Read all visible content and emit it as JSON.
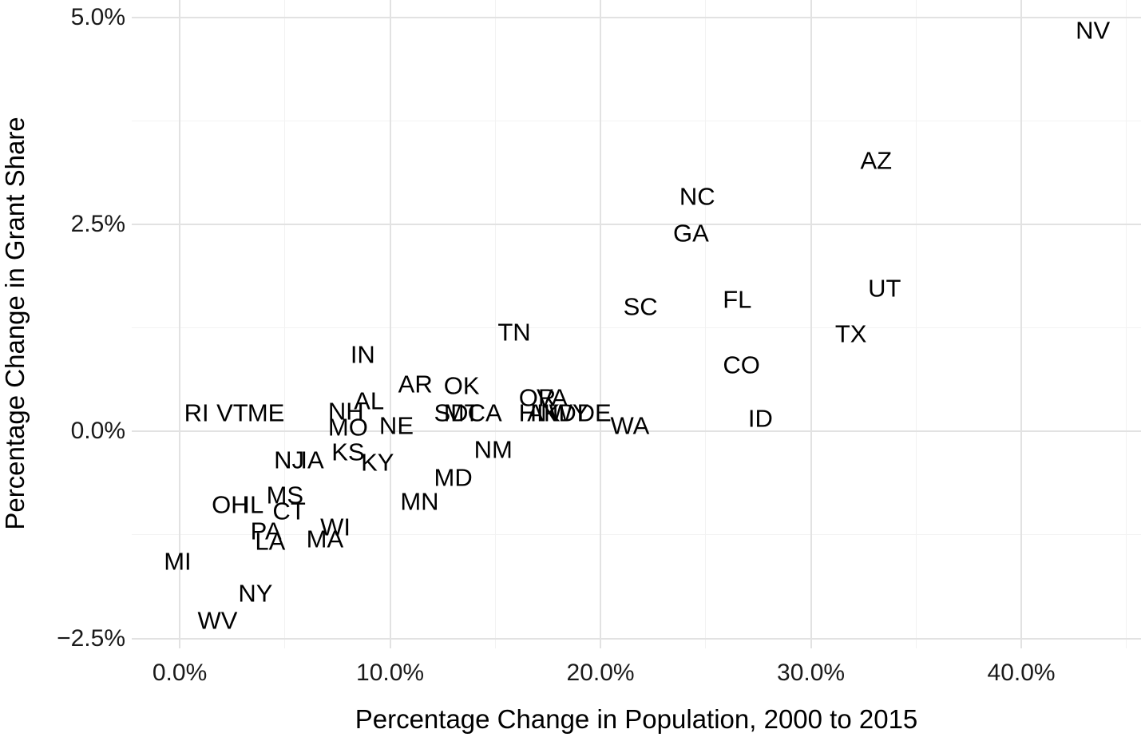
{
  "chart_data": {
    "type": "scatter",
    "point_style": "text-labels",
    "title": "",
    "xlabel": "Percentage Change in Population, 2000 to 2015",
    "ylabel": "Percentage Change in Grant Share",
    "xlim": [
      -2.28,
      45.69
    ],
    "ylim": [
      -2.62,
      5.21
    ],
    "grid": true,
    "legend": "none",
    "x_major_ticks": [
      {
        "value": 0,
        "label": "0.0%"
      },
      {
        "value": 10,
        "label": "10.0%"
      },
      {
        "value": 20,
        "label": "20.0%"
      },
      {
        "value": 30,
        "label": "30.0%"
      },
      {
        "value": 40,
        "label": "40.0%"
      }
    ],
    "x_minor_ticks": [
      5,
      15,
      25,
      35,
      45
    ],
    "y_major_ticks": [
      {
        "value": 5,
        "label": "5.0%"
      },
      {
        "value": 2.5,
        "label": "2.5%"
      },
      {
        "value": 0,
        "label": "0.0%"
      },
      {
        "value": -2.5,
        "label": "−2.5%"
      }
    ],
    "y_minor_ticks": [
      3.75,
      1.25,
      -1.25
    ],
    "points": [
      {
        "label": "AK",
        "x": 17.3,
        "y": 0.22
      },
      {
        "label": "AL",
        "x": 9.0,
        "y": 0.37
      },
      {
        "label": "AR",
        "x": 11.2,
        "y": 0.57
      },
      {
        "label": "AZ",
        "x": 33.1,
        "y": 3.27
      },
      {
        "label": "CA",
        "x": 14.5,
        "y": 0.22
      },
      {
        "label": "CO",
        "x": 26.7,
        "y": 0.8
      },
      {
        "label": "CT",
        "x": 5.2,
        "y": -0.96
      },
      {
        "label": "DE",
        "x": 19.7,
        "y": 0.22
      },
      {
        "label": "FL",
        "x": 26.5,
        "y": 1.59
      },
      {
        "label": "GA",
        "x": 24.3,
        "y": 2.39
      },
      {
        "label": "HI",
        "x": 16.7,
        "y": 0.22
      },
      {
        "label": "IA",
        "x": 6.3,
        "y": -0.34
      },
      {
        "label": "ID",
        "x": 27.6,
        "y": 0.16
      },
      {
        "label": "IL",
        "x": 3.5,
        "y": -0.88
      },
      {
        "label": "IN",
        "x": 8.7,
        "y": 0.93
      },
      {
        "label": "KS",
        "x": 8.0,
        "y": -0.25
      },
      {
        "label": "KY",
        "x": 9.4,
        "y": -0.37
      },
      {
        "label": "LA",
        "x": 4.3,
        "y": -1.33
      },
      {
        "label": "MA",
        "x": 6.9,
        "y": -1.3
      },
      {
        "label": "MD",
        "x": 13.0,
        "y": -0.56
      },
      {
        "label": "ME",
        "x": 4.1,
        "y": 0.22
      },
      {
        "label": "MI",
        "x": -0.1,
        "y": -1.57
      },
      {
        "label": "MN",
        "x": 11.4,
        "y": -0.85
      },
      {
        "label": "MO",
        "x": 8.0,
        "y": 0.05
      },
      {
        "label": "MS",
        "x": 5.0,
        "y": -0.77
      },
      {
        "label": "MT",
        "x": 13.4,
        "y": 0.22
      },
      {
        "label": "NC",
        "x": 24.6,
        "y": 2.84
      },
      {
        "label": "ND",
        "x": 18.0,
        "y": 0.22
      },
      {
        "label": "NE",
        "x": 10.3,
        "y": 0.07
      },
      {
        "label": "NH",
        "x": 7.9,
        "y": 0.24
      },
      {
        "label": "NJ",
        "x": 5.2,
        "y": -0.34
      },
      {
        "label": "NM",
        "x": 14.9,
        "y": -0.22
      },
      {
        "label": "NV",
        "x": 43.4,
        "y": 4.84
      },
      {
        "label": "NY",
        "x": 3.6,
        "y": -1.95
      },
      {
        "label": "OH",
        "x": 2.4,
        "y": -0.88
      },
      {
        "label": "OK",
        "x": 13.4,
        "y": 0.55
      },
      {
        "label": "OR",
        "x": 17.0,
        "y": 0.41
      },
      {
        "label": "PA",
        "x": 4.1,
        "y": -1.2
      },
      {
        "label": "RI",
        "x": 0.8,
        "y": 0.22
      },
      {
        "label": "SC",
        "x": 21.9,
        "y": 1.51
      },
      {
        "label": "SD",
        "x": 12.9,
        "y": 0.22
      },
      {
        "label": "TN",
        "x": 15.9,
        "y": 1.2
      },
      {
        "label": "TX",
        "x": 31.9,
        "y": 1.18
      },
      {
        "label": "UT",
        "x": 33.5,
        "y": 1.73
      },
      {
        "label": "VA",
        "x": 17.7,
        "y": 0.41
      },
      {
        "label": "VT",
        "x": 2.5,
        "y": 0.22
      },
      {
        "label": "WA",
        "x": 21.4,
        "y": 0.07
      },
      {
        "label": "WI",
        "x": 7.4,
        "y": -1.15
      },
      {
        "label": "WV",
        "x": 1.8,
        "y": -2.28
      },
      {
        "label": "WY",
        "x": 18.5,
        "y": 0.22
      }
    ]
  }
}
